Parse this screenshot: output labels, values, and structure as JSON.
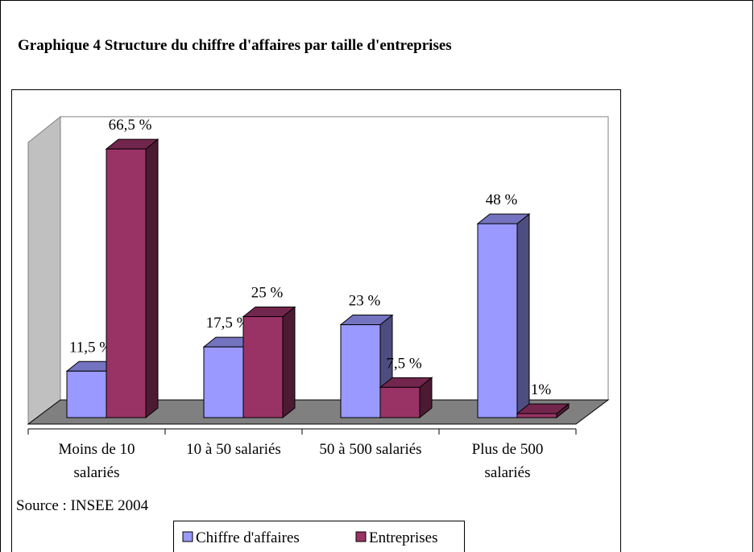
{
  "chart_data": {
    "type": "bar3d",
    "title": "Graphique 4  Structure du chiffre d'affaires par taille d'entreprises",
    "categories": [
      "Moins de 10 salariés",
      "10 à 50 salariés",
      "50 à 500 salariés",
      "Plus de 500 salariés"
    ],
    "series": [
      {
        "name": "Chiffre d'affaires",
        "color": "#9999ff",
        "values": [
          11.5,
          17.5,
          23,
          48
        ],
        "value_labels": [
          "11,5 %",
          "17,5 %",
          "23 %",
          "48 %"
        ]
      },
      {
        "name": "Entreprises",
        "color": "#993366",
        "values": [
          66.5,
          25,
          7.5,
          1
        ],
        "value_labels": [
          "66,5 %",
          "25 %",
          "7,5 %",
          "1%"
        ]
      }
    ],
    "ylim": [
      0,
      70
    ],
    "source": "Source : INSEE 2004",
    "legend": "bottom"
  }
}
